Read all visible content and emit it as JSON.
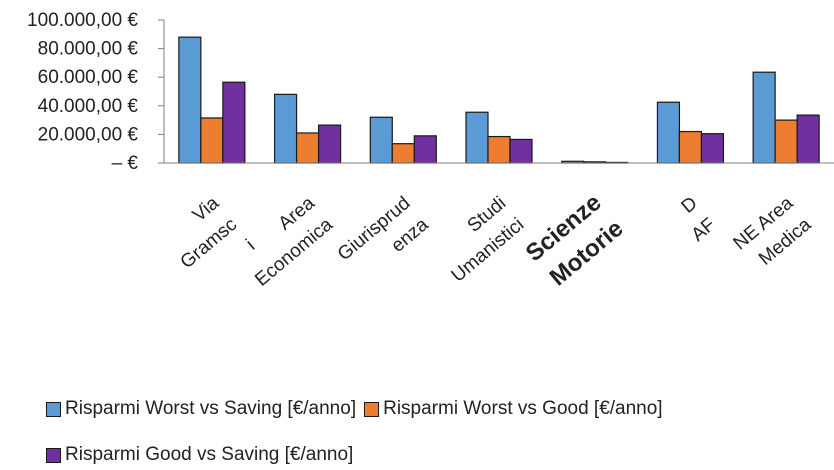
{
  "chart_data": {
    "type": "bar",
    "title": "",
    "xlabel": "",
    "ylabel": "",
    "ylim": [
      0,
      100000
    ],
    "y_ticks": [
      "100.000,00 €",
      "80.000,00 €",
      "60.000,00 €",
      "40.000,00 €",
      "20.000,00 €",
      "–   €"
    ],
    "y_tick_values": [
      100000,
      80000,
      60000,
      40000,
      20000,
      0
    ],
    "categories": [
      "Via Gramsci",
      "Area Economica",
      "Giurisprudenza",
      "Studi Umanistici",
      "Scienze Motorie",
      "DAF",
      "NE Area Medica"
    ],
    "category_label_lines": [
      [
        "Via",
        "Gramsc",
        "i"
      ],
      [
        "Area",
        "Economica"
      ],
      [
        "Giurisprud",
        "enza"
      ],
      [
        "Studi",
        "Umanistici"
      ],
      [
        "Scienze",
        "Motorie"
      ],
      [
        "D",
        "AF"
      ],
      [
        "NE Area",
        "Medica"
      ]
    ],
    "series": [
      {
        "name": "Risparmi Worst vs Saving [€/anno]",
        "color": "#5b9bd5",
        "values": [
          88000,
          48000,
          32000,
          35500,
          1200,
          42500,
          63500
        ]
      },
      {
        "name": "Risparmi Worst vs Good [€/anno]",
        "color": "#ed7d31",
        "values": [
          31500,
          21000,
          13500,
          18500,
          800,
          22000,
          30000
        ]
      },
      {
        "name": "Risparmi Good vs Saving [€/anno]",
        "color": "#7030a0",
        "values": [
          56500,
          26500,
          19000,
          16500,
          400,
          20500,
          33500
        ]
      }
    ],
    "grid": false,
    "legend_position": "bottom"
  }
}
